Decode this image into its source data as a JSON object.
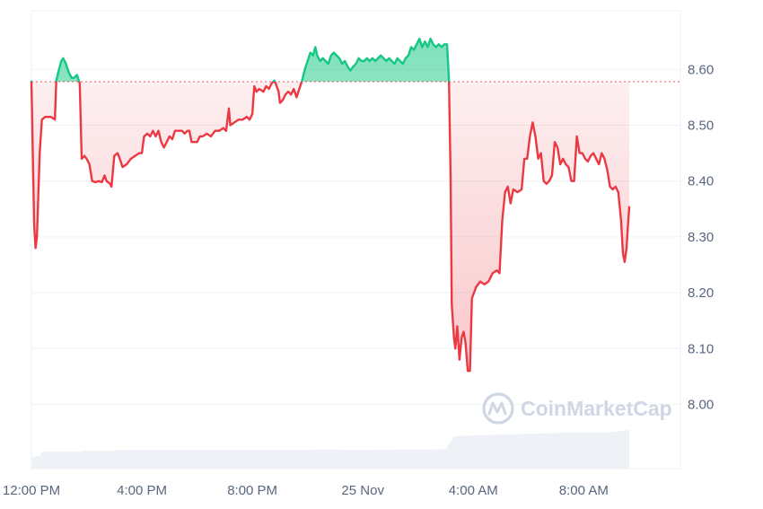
{
  "chart_data": {
    "type": "area",
    "baseline": 8.578,
    "ylim": [
      7.885,
      8.705
    ],
    "y_ticks": [
      8.0,
      8.1,
      8.2,
      8.3,
      8.4,
      8.5,
      8.6
    ],
    "y_tick_labels": [
      "8.00",
      "8.10",
      "8.20",
      "8.30",
      "8.40",
      "8.50",
      "8.60"
    ],
    "x_range_hours": [
      0,
      23.5
    ],
    "x_ticks": [
      {
        "label": "12:00 PM",
        "hours": 0
      },
      {
        "label": "4:00 PM",
        "hours": 4
      },
      {
        "label": "8:00 PM",
        "hours": 8
      },
      {
        "label": "25 Nov",
        "hours": 12
      },
      {
        "label": "4:00 AM",
        "hours": 16
      },
      {
        "label": "8:00 AM",
        "hours": 20
      }
    ],
    "colors": {
      "above": "#16c784",
      "below": "#ea3943",
      "baseline": "#ea3943",
      "volume": "#eef1f6"
    },
    "grid": true,
    "watermark": "CoinMarketCap",
    "series": [
      {
        "points": [
          [
            0.0,
            8.58
          ],
          [
            0.05,
            8.45
          ],
          [
            0.1,
            8.32
          ],
          [
            0.15,
            8.28
          ],
          [
            0.2,
            8.3
          ],
          [
            0.3,
            8.45
          ],
          [
            0.38,
            8.51
          ],
          [
            0.5,
            8.515
          ],
          [
            0.7,
            8.515
          ],
          [
            0.85,
            8.51
          ],
          [
            0.9,
            8.58
          ],
          [
            1.0,
            8.6
          ],
          [
            1.08,
            8.615
          ],
          [
            1.15,
            8.62
          ],
          [
            1.25,
            8.61
          ],
          [
            1.35,
            8.595
          ],
          [
            1.45,
            8.585
          ],
          [
            1.55,
            8.585
          ],
          [
            1.65,
            8.59
          ],
          [
            1.75,
            8.575
          ],
          [
            1.82,
            8.44
          ],
          [
            1.92,
            8.445
          ],
          [
            2.0,
            8.44
          ],
          [
            2.1,
            8.43
          ],
          [
            2.2,
            8.4
          ],
          [
            2.32,
            8.398
          ],
          [
            2.45,
            8.4
          ],
          [
            2.55,
            8.398
          ],
          [
            2.65,
            8.41
          ],
          [
            2.72,
            8.4
          ],
          [
            2.85,
            8.395
          ],
          [
            2.9,
            8.39
          ],
          [
            3.0,
            8.445
          ],
          [
            3.12,
            8.45
          ],
          [
            3.2,
            8.44
          ],
          [
            3.3,
            8.425
          ],
          [
            3.45,
            8.43
          ],
          [
            3.6,
            8.44
          ],
          [
            3.75,
            8.445
          ],
          [
            3.9,
            8.45
          ],
          [
            4.0,
            8.45
          ],
          [
            4.08,
            8.48
          ],
          [
            4.2,
            8.485
          ],
          [
            4.3,
            8.48
          ],
          [
            4.4,
            8.49
          ],
          [
            4.5,
            8.48
          ],
          [
            4.6,
            8.49
          ],
          [
            4.7,
            8.47
          ],
          [
            4.8,
            8.46
          ],
          [
            4.9,
            8.47
          ],
          [
            5.0,
            8.48
          ],
          [
            5.1,
            8.475
          ],
          [
            5.2,
            8.49
          ],
          [
            5.35,
            8.49
          ],
          [
            5.45,
            8.49
          ],
          [
            5.55,
            8.485
          ],
          [
            5.65,
            8.49
          ],
          [
            5.72,
            8.49
          ],
          [
            5.8,
            8.47
          ],
          [
            5.9,
            8.47
          ],
          [
            6.0,
            8.47
          ],
          [
            6.1,
            8.48
          ],
          [
            6.2,
            8.48
          ],
          [
            6.35,
            8.485
          ],
          [
            6.5,
            8.48
          ],
          [
            6.65,
            8.49
          ],
          [
            6.8,
            8.49
          ],
          [
            6.95,
            8.495
          ],
          [
            7.05,
            8.49
          ],
          [
            7.15,
            8.53
          ],
          [
            7.2,
            8.5
          ],
          [
            7.35,
            8.505
          ],
          [
            7.5,
            8.51
          ],
          [
            7.65,
            8.51
          ],
          [
            7.8,
            8.515
          ],
          [
            7.9,
            8.51
          ],
          [
            8.0,
            8.52
          ],
          [
            8.07,
            8.57
          ],
          [
            8.15,
            8.56
          ],
          [
            8.25,
            8.565
          ],
          [
            8.4,
            8.56
          ],
          [
            8.5,
            8.57
          ],
          [
            8.6,
            8.565
          ],
          [
            8.7,
            8.575
          ],
          [
            8.8,
            8.58
          ],
          [
            8.88,
            8.57
          ],
          [
            8.95,
            8.56
          ],
          [
            9.0,
            8.54
          ],
          [
            9.1,
            8.545
          ],
          [
            9.2,
            8.555
          ],
          [
            9.3,
            8.56
          ],
          [
            9.4,
            8.555
          ],
          [
            9.5,
            8.565
          ],
          [
            9.6,
            8.55
          ],
          [
            9.7,
            8.565
          ],
          [
            9.8,
            8.58
          ],
          [
            9.9,
            8.6
          ],
          [
            10.0,
            8.615
          ],
          [
            10.1,
            8.63
          ],
          [
            10.2,
            8.625
          ],
          [
            10.28,
            8.64
          ],
          [
            10.35,
            8.625
          ],
          [
            10.45,
            8.615
          ],
          [
            10.55,
            8.62
          ],
          [
            10.65,
            8.615
          ],
          [
            10.75,
            8.61
          ],
          [
            10.85,
            8.625
          ],
          [
            10.95,
            8.63
          ],
          [
            11.05,
            8.625
          ],
          [
            11.15,
            8.62
          ],
          [
            11.25,
            8.61
          ],
          [
            11.35,
            8.615
          ],
          [
            11.45,
            8.605
          ],
          [
            11.55,
            8.598
          ],
          [
            11.65,
            8.605
          ],
          [
            11.75,
            8.61
          ],
          [
            11.85,
            8.62
          ],
          [
            11.95,
            8.615
          ],
          [
            12.05,
            8.615
          ],
          [
            12.15,
            8.62
          ],
          [
            12.25,
            8.615
          ],
          [
            12.35,
            8.62
          ],
          [
            12.45,
            8.615
          ],
          [
            12.55,
            8.62
          ],
          [
            12.65,
            8.625
          ],
          [
            12.75,
            8.62
          ],
          [
            12.85,
            8.615
          ],
          [
            12.95,
            8.62
          ],
          [
            13.05,
            8.615
          ],
          [
            13.15,
            8.61
          ],
          [
            13.25,
            8.62
          ],
          [
            13.35,
            8.615
          ],
          [
            13.45,
            8.61
          ],
          [
            13.55,
            8.62
          ],
          [
            13.65,
            8.625
          ],
          [
            13.75,
            8.64
          ],
          [
            13.85,
            8.635
          ],
          [
            13.95,
            8.645
          ],
          [
            14.05,
            8.655
          ],
          [
            14.15,
            8.64
          ],
          [
            14.25,
            8.65
          ],
          [
            14.35,
            8.64
          ],
          [
            14.45,
            8.655
          ],
          [
            14.55,
            8.645
          ],
          [
            14.65,
            8.64
          ],
          [
            14.75,
            8.645
          ],
          [
            14.85,
            8.64
          ],
          [
            14.95,
            8.645
          ],
          [
            15.05,
            8.645
          ],
          [
            15.12,
            8.58
          ],
          [
            15.18,
            8.4
          ],
          [
            15.22,
            8.18
          ],
          [
            15.3,
            8.12
          ],
          [
            15.35,
            8.1
          ],
          [
            15.42,
            8.14
          ],
          [
            15.5,
            8.08
          ],
          [
            15.58,
            8.12
          ],
          [
            15.65,
            8.13
          ],
          [
            15.72,
            8.11
          ],
          [
            15.8,
            8.06
          ],
          [
            15.88,
            8.06
          ],
          [
            15.95,
            8.19
          ],
          [
            16.1,
            8.21
          ],
          [
            16.25,
            8.22
          ],
          [
            16.4,
            8.215
          ],
          [
            16.55,
            8.22
          ],
          [
            16.7,
            8.235
          ],
          [
            16.85,
            8.24
          ],
          [
            16.95,
            8.235
          ],
          [
            17.05,
            8.33
          ],
          [
            17.15,
            8.38
          ],
          [
            17.25,
            8.39
          ],
          [
            17.35,
            8.36
          ],
          [
            17.45,
            8.385
          ],
          [
            17.6,
            8.38
          ],
          [
            17.75,
            8.385
          ],
          [
            17.85,
            8.44
          ],
          [
            17.95,
            8.44
          ],
          [
            18.05,
            8.48
          ],
          [
            18.15,
            8.505
          ],
          [
            18.25,
            8.48
          ],
          [
            18.35,
            8.44
          ],
          [
            18.45,
            8.45
          ],
          [
            18.55,
            8.4
          ],
          [
            18.65,
            8.395
          ],
          [
            18.75,
            8.4
          ],
          [
            18.85,
            8.41
          ],
          [
            18.95,
            8.47
          ],
          [
            19.05,
            8.46
          ],
          [
            19.15,
            8.43
          ],
          [
            19.25,
            8.44
          ],
          [
            19.35,
            8.43
          ],
          [
            19.45,
            8.425
          ],
          [
            19.55,
            8.4
          ],
          [
            19.65,
            8.4
          ],
          [
            19.75,
            8.48
          ],
          [
            19.85,
            8.45
          ],
          [
            19.95,
            8.45
          ],
          [
            20.05,
            8.44
          ],
          [
            20.15,
            8.435
          ],
          [
            20.25,
            8.445
          ],
          [
            20.35,
            8.45
          ],
          [
            20.45,
            8.44
          ],
          [
            20.55,
            8.43
          ],
          [
            20.65,
            8.45
          ],
          [
            20.75,
            8.44
          ],
          [
            20.85,
            8.42
          ],
          [
            20.95,
            8.39
          ],
          [
            21.05,
            8.385
          ],
          [
            21.15,
            8.39
          ],
          [
            21.25,
            8.38
          ],
          [
            21.35,
            8.33
          ],
          [
            21.42,
            8.27
          ],
          [
            21.48,
            8.255
          ],
          [
            21.55,
            8.28
          ],
          [
            21.6,
            8.32
          ],
          [
            21.65,
            8.355
          ]
        ]
      }
    ],
    "volume": [
      [
        0.0,
        0.14
      ],
      [
        0.3,
        0.16
      ],
      [
        0.4,
        0.21
      ],
      [
        1.8,
        0.21
      ],
      [
        1.9,
        0.22
      ],
      [
        3.0,
        0.22
      ],
      [
        3.1,
        0.23
      ],
      [
        10.0,
        0.23
      ],
      [
        10.3,
        0.235
      ],
      [
        12.0,
        0.23
      ],
      [
        14.0,
        0.235
      ],
      [
        15.0,
        0.24
      ],
      [
        15.3,
        0.4
      ],
      [
        16.0,
        0.41
      ],
      [
        17.0,
        0.42
      ],
      [
        18.0,
        0.43
      ],
      [
        19.0,
        0.44
      ],
      [
        20.0,
        0.45
      ],
      [
        21.0,
        0.45
      ],
      [
        21.65,
        0.48
      ]
    ]
  }
}
